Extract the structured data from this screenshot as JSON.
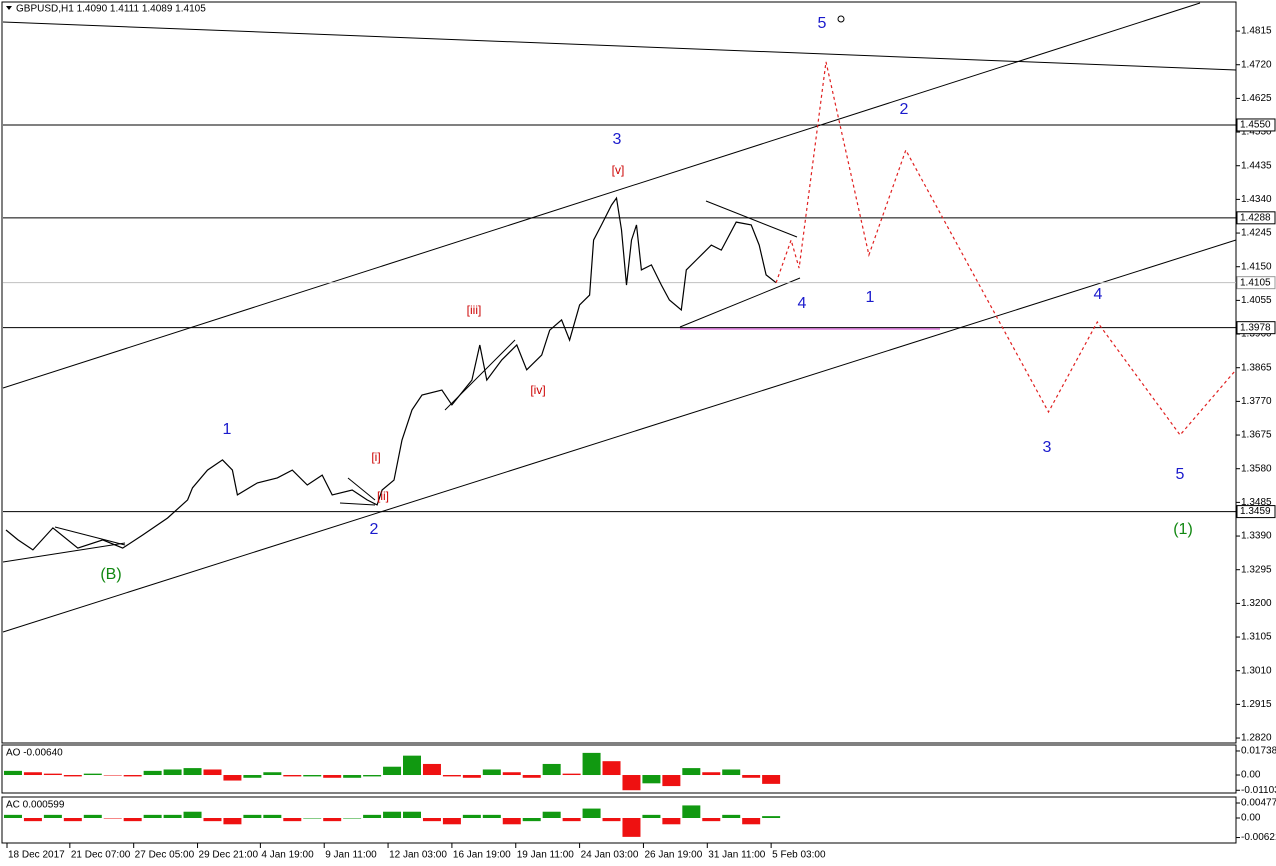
{
  "chart_data": [
    {
      "type": "line",
      "title": "GBPUSD,H1  1.4090 1.4111 1.4089 1.4105",
      "color": "#000000",
      "x": [
        3,
        15,
        30,
        50,
        75,
        100,
        120,
        140,
        165,
        185,
        190,
        205,
        220,
        230,
        235,
        255,
        275,
        290,
        305,
        320,
        330,
        350,
        365,
        375,
        380,
        392,
        400,
        410,
        420,
        440,
        450,
        470,
        478,
        485,
        500,
        515,
        525,
        540,
        548,
        560,
        568,
        578,
        588,
        592,
        600,
        610,
        615,
        620,
        625,
        630,
        635,
        640,
        650,
        660,
        668,
        680,
        685,
        695,
        710,
        720,
        735,
        750,
        758,
        765,
        775
      ],
      "values": [
        1.3407,
        1.3379,
        1.3351,
        1.3413,
        1.3356,
        1.3379,
        1.3356,
        1.3393,
        1.3441,
        1.3492,
        1.3526,
        1.3576,
        1.3605,
        1.3576,
        1.3506,
        1.354,
        1.3554,
        1.3576,
        1.3534,
        1.3562,
        1.3506,
        1.352,
        1.3492,
        1.3478,
        1.352,
        1.3548,
        1.3661,
        1.3746,
        1.3788,
        1.3802,
        1.376,
        1.383,
        1.3929,
        1.383,
        1.3887,
        1.3929,
        1.3859,
        1.3901,
        1.3971,
        1.4,
        1.3943,
        1.4042,
        1.407,
        1.4225,
        1.4268,
        1.4324,
        1.4344,
        1.4254,
        1.4098,
        1.4225,
        1.4268,
        1.4141,
        1.4155,
        1.4098,
        1.4056,
        1.4028,
        1.4141,
        1.4169,
        1.4211,
        1.4197,
        1.4276,
        1.4268,
        1.4211,
        1.4127,
        1.4105
      ],
      "xlim": [
        0,
        1236
      ],
      "ylim": [
        1.2806,
        1.4897
      ],
      "yticks": [
        1.4815,
        {
          "value": 1.472,
          "label": "1.4720"
        },
        1.4625,
        {
          "value": 1.453,
          "label": "1.4530"
        },
        1.4435,
        {
          "value": 1.434,
          "label": "1.4340"
        },
        1.4245,
        {
          "value": 1.415,
          "label": "1.4150"
        },
        1.4055,
        {
          "value": 1.396,
          "label": "1.3960"
        },
        1.3865,
        {
          "value": 1.377,
          "label": "1.3770"
        },
        1.3675,
        {
          "value": 1.358,
          "label": "1.3580"
        },
        1.3485,
        {
          "value": 1.339,
          "label": "1.3390"
        },
        1.3295,
        {
          "value": 1.32,
          "label": "1.3200"
        },
        1.3105,
        {
          "value": 1.301,
          "label": "1.3010"
        },
        1.2915,
        {
          "value": 1.282,
          "label": "1.2820"
        }
      ],
      "xticks": [
        {
          "value": 4,
          "label": "18 Dec 2017"
        },
        {
          "value": 67,
          "label": "21 Dec 07:00"
        },
        {
          "value": 131,
          "label": "27 Dec 05:00"
        },
        {
          "value": 195,
          "label": "29 Dec 21:00"
        },
        {
          "value": 258,
          "label": "4 Jan 19:00"
        },
        {
          "value": 322,
          "label": "9 Jan 11:00"
        },
        {
          "value": 386,
          "label": "12 Jan 03:00"
        },
        {
          "value": 450,
          "label": "16 Jan 19:00"
        },
        {
          "value": 514,
          "label": "19 Jan 11:00"
        },
        {
          "value": 578,
          "label": "24 Jan 03:00"
        },
        {
          "value": 642,
          "label": "26 Jan 19:00"
        },
        {
          "value": 706,
          "label": "31 Jan 11:00"
        },
        {
          "value": 770,
          "label": "5 Feb 03:00"
        }
      ],
      "levels": [
        {
          "value": 1.455,
          "label": "1.4550",
          "color": "#000000"
        },
        {
          "value": 1.4288,
          "label": "1.4288",
          "color": "#000000"
        },
        {
          "value": 1.4105,
          "label": "1.4105",
          "color": "#c0c0c0"
        },
        {
          "value": 1.3978,
          "label": "1.3978",
          "color": "#000000"
        },
        {
          "value": 1.3459,
          "label": "1.3459",
          "color": "#000000"
        }
      ],
      "annotations": [
        {
          "text": "5",
          "color": "#1a1acc"
        },
        {
          "text": "3",
          "color": "#1a1acc"
        },
        {
          "text": "2",
          "color": "#1a1acc"
        },
        {
          "text": "4",
          "color": "#1a1acc"
        },
        {
          "text": "1",
          "color": "#1a1acc"
        },
        {
          "text": "4",
          "color": "#1a1acc"
        },
        {
          "text": "3",
          "color": "#1a1acc"
        },
        {
          "text": "5",
          "color": "#1a1acc"
        },
        {
          "text": "1",
          "color": "#1a1acc"
        },
        {
          "text": "2",
          "color": "#1a1acc"
        },
        {
          "text": "(B)",
          "color": "#118811"
        },
        {
          "text": "(1)",
          "color": "#118811"
        },
        {
          "text": "[v]",
          "color": "#cc0000"
        },
        {
          "text": "[iii]",
          "color": "#cc0000"
        },
        {
          "text": "[iv]",
          "color": "#cc0000"
        },
        {
          "text": "[i]",
          "color": "#cc0000"
        },
        {
          "text": "[ii]",
          "color": "#cc0000"
        }
      ]
    },
    {
      "type": "line",
      "line_style": "dashed",
      "color": "#e02020",
      "x": [
        775,
        790,
        798,
        825,
        868,
        905,
        1048,
        1097,
        1180,
        1236
      ],
      "values": [
        1.4105,
        1.4225,
        1.4146,
        1.4728,
        1.4183,
        1.4479,
        1.374,
        1.3994,
        1.3675,
        1.3859
      ]
    },
    {
      "type": "bar",
      "title": "AO -0.00640",
      "up_color": "#119911",
      "down_color": "#ee1111",
      "x": [
        10,
        30,
        50,
        70,
        90,
        110,
        130,
        150,
        170,
        190,
        210,
        230,
        250,
        270,
        290,
        310,
        330,
        350,
        370,
        390,
        410,
        430,
        450,
        470,
        490,
        510,
        530,
        550,
        570,
        590,
        610,
        630,
        650,
        670,
        690,
        710,
        730,
        750,
        770
      ],
      "values": [
        0.003,
        0.002,
        0.001,
        -0.001,
        0.001,
        0,
        -0.001,
        0.003,
        0.004,
        0.005,
        0.004,
        -0.004,
        -0.002,
        0.002,
        -0.001,
        -0.001,
        -0.002,
        -0.002,
        -0.001,
        0.006,
        0.014,
        0.008,
        -0.001,
        -0.002,
        0.004,
        0.002,
        -0.002,
        0.008,
        0.001,
        0.016,
        0.01,
        -0.011,
        -0.006,
        -0.008,
        0.005,
        0.002,
        0.004,
        -0.002,
        -0.0064
      ],
      "ylim": [
        -0.013,
        0.0217
      ],
      "yticks": [
        0.01738,
        {
          "value": 0,
          "label": "0.00"
        },
        -0.01103
      ]
    },
    {
      "type": "bar",
      "title": "AC 0.000599",
      "up_color": "#119911",
      "down_color": "#ee1111",
      "x": [
        10,
        30,
        50,
        70,
        90,
        110,
        130,
        150,
        170,
        190,
        210,
        230,
        250,
        270,
        290,
        310,
        330,
        350,
        370,
        390,
        410,
        430,
        450,
        470,
        490,
        510,
        530,
        550,
        570,
        590,
        610,
        630,
        650,
        670,
        690,
        710,
        730,
        750,
        770
      ],
      "values": [
        0.001,
        -0.001,
        0.001,
        -0.001,
        0.001,
        0,
        -0.001,
        0.001,
        0.001,
        0.002,
        -0.001,
        -0.002,
        0.001,
        0.001,
        -0.001,
        0,
        -0.001,
        0,
        0.001,
        0.002,
        0.002,
        -0.001,
        -0.002,
        0.001,
        0.001,
        -0.002,
        -0.001,
        0.002,
        -0.001,
        0.003,
        -0.001,
        -0.006,
        0.001,
        -0.002,
        0.004,
        -0.001,
        0.001,
        -0.002,
        0.000599
      ],
      "ylim": [
        -0.00795,
        0.00668
      ],
      "yticks": [
        0.00477,
        {
          "value": 0,
          "label": "0.00"
        },
        -0.00621
      ]
    }
  ]
}
